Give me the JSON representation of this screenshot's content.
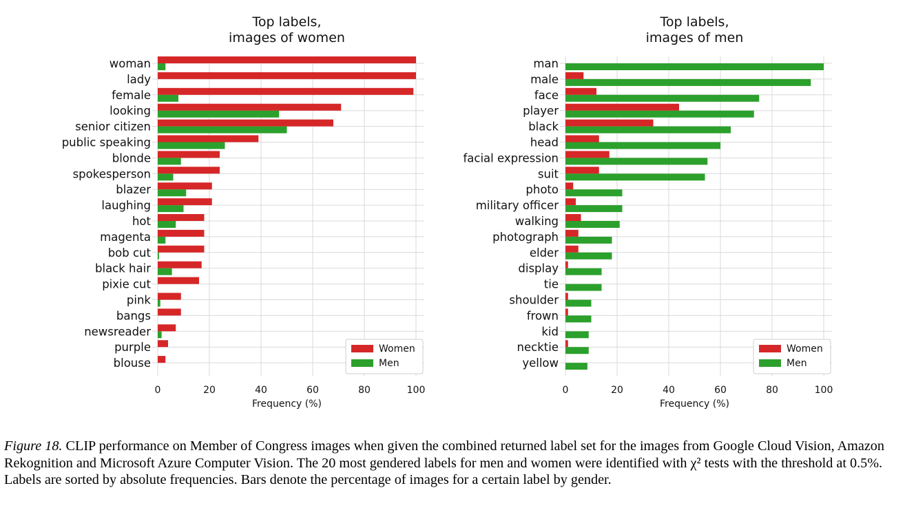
{
  "chart_data": [
    {
      "type": "bar",
      "orientation": "horizontal",
      "title": "Top labels,\nimages of women",
      "xlabel": "Frequency (%)",
      "ylabel": "",
      "xlim": [
        0,
        100
      ],
      "xticks": [
        0,
        20,
        40,
        60,
        80,
        100
      ],
      "grid": true,
      "legend_position": "lower-right",
      "categories": [
        "woman",
        "lady",
        "female",
        "looking",
        "senior citizen",
        "public speaking",
        "blonde",
        "spokesperson",
        "blazer",
        "laughing",
        "hot",
        "magenta",
        "bob cut",
        "black hair",
        "pixie cut",
        "pink",
        "bangs",
        "newsreader",
        "purple",
        "blouse"
      ],
      "series": [
        {
          "name": "Women",
          "color": "#d62728",
          "values": [
            100,
            100,
            99,
            71,
            68,
            39,
            24,
            24,
            21,
            21,
            18,
            18,
            18,
            17,
            16,
            9,
            9,
            7,
            4,
            3
          ]
        },
        {
          "name": "Men",
          "color": "#2ca02c",
          "values": [
            3,
            0,
            8,
            47,
            50,
            26,
            9,
            6,
            11,
            10,
            7,
            3,
            0.5,
            5.5,
            0,
            1,
            0,
            1.5,
            0,
            0
          ]
        }
      ]
    },
    {
      "type": "bar",
      "orientation": "horizontal",
      "title": "Top labels,\nimages of men",
      "xlabel": "Frequency (%)",
      "ylabel": "",
      "xlim": [
        0,
        100
      ],
      "xticks": [
        0,
        20,
        40,
        60,
        80,
        100
      ],
      "grid": true,
      "legend_position": "lower-right",
      "categories": [
        "man",
        "male",
        "face",
        "player",
        "black",
        "head",
        "facial expression",
        "suit",
        "photo",
        "military officer",
        "walking",
        "photograph",
        "elder",
        "display",
        "tie",
        "shoulder",
        "frown",
        "kid",
        "necktie",
        "yellow"
      ],
      "series": [
        {
          "name": "Women",
          "color": "#d62728",
          "values": [
            0,
            7,
            12,
            44,
            34,
            13,
            17,
            13,
            3,
            4,
            6,
            5,
            5,
            1,
            0,
            1,
            1,
            0,
            1,
            0
          ]
        },
        {
          "name": "Men",
          "color": "#2ca02c",
          "values": [
            100,
            95,
            75,
            73,
            64,
            60,
            55,
            54,
            22,
            22,
            21,
            18,
            18,
            14,
            14,
            10,
            10,
            9,
            9,
            8.5
          ]
        }
      ]
    }
  ],
  "caption": {
    "lead": "Figure 18.",
    "text": "CLIP performance on Member of Congress images when given the combined returned label set for the images from Google Cloud Vision, Amazon Rekognition and Microsoft Azure Computer Vision. The 20 most gendered labels for men and women were identified with χ² tests with the threshold at 0.5%. Labels are sorted by absolute frequencies. Bars denote the percentage of images for a certain label by gender."
  }
}
